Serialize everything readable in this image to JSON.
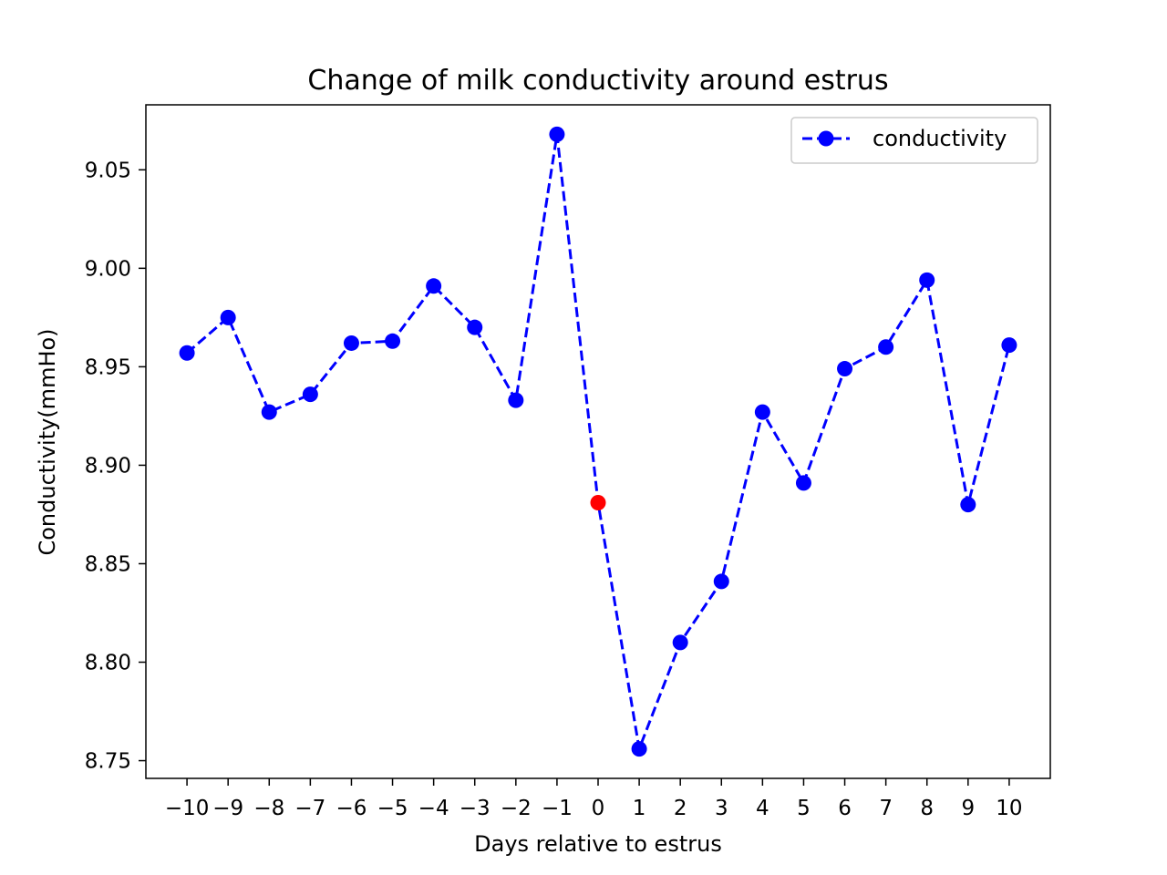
{
  "chart_data": {
    "type": "line",
    "title": "Change of milk conductivity around estrus",
    "xlabel": "Days relative to estrus",
    "ylabel": "Conductivity(mmHo)",
    "x": [
      -10,
      -9,
      -8,
      -7,
      -6,
      -5,
      -4,
      -3,
      -2,
      -1,
      0,
      1,
      2,
      3,
      4,
      5,
      6,
      7,
      8,
      9,
      10
    ],
    "x_tick_labels": [
      "−10",
      "−9",
      "−8",
      "−7",
      "−6",
      "−5",
      "−4",
      "−3",
      "−2",
      "−1",
      "0",
      "1",
      "2",
      "3",
      "4",
      "5",
      "6",
      "7",
      "8",
      "9",
      "10"
    ],
    "y_ticks": [
      8.75,
      8.8,
      8.85,
      8.9,
      8.95,
      9.0,
      9.05
    ],
    "y_tick_labels": [
      "8.75",
      "8.80",
      "8.85",
      "8.90",
      "8.95",
      "9.00",
      "9.05"
    ],
    "ylim": [
      8.741,
      9.083
    ],
    "xlim": [
      -11,
      11
    ],
    "series": [
      {
        "name": "conductivity",
        "color": "#0000ff",
        "line_style": "dashed",
        "marker": "circle",
        "values": [
          8.957,
          8.975,
          8.927,
          8.936,
          8.962,
          8.963,
          8.991,
          8.97,
          8.933,
          9.068,
          8.881,
          8.756,
          8.81,
          8.841,
          8.927,
          8.891,
          8.949,
          8.96,
          8.994,
          8.88,
          8.961
        ]
      }
    ],
    "highlight": {
      "x": 0,
      "y": 8.881,
      "color": "#ff0000"
    },
    "legend": {
      "position": "top-right",
      "entries": [
        "conductivity"
      ]
    },
    "grid": false
  }
}
